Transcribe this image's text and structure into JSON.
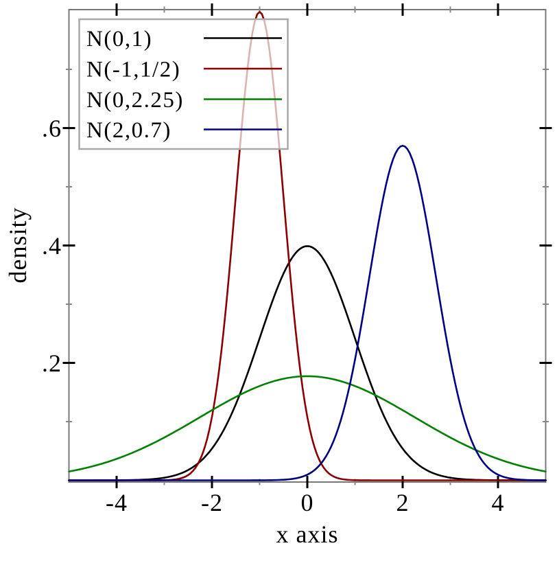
{
  "chart_data": {
    "type": "line",
    "title": "",
    "xlabel": "x axis",
    "ylabel": "density",
    "xlim": [
      -5,
      5
    ],
    "ylim": [
      0,
      0.8
    ],
    "grid": false,
    "legend_position": "top-left",
    "curve_formula": "normal_pdf: f(x) = exp(-(x-mu)^2/(2*sigma^2)) / (sigma*sqrt(2*pi))",
    "x_major_ticks": {
      "values": [
        -4,
        -2,
        0,
        2,
        4
      ],
      "labels": [
        "-4",
        "-2",
        "0",
        "2",
        "4"
      ]
    },
    "x_minor_ticks": [
      -3,
      -1,
      1,
      3
    ],
    "y_major_ticks": {
      "values": [
        0.2,
        0.4,
        0.6
      ],
      "labels": [
        ".2",
        ".4",
        ".6"
      ]
    },
    "y_minor_ticks": [
      0.1,
      0.3,
      0.5,
      0.7
    ],
    "series": [
      {
        "name": "N(0,1)",
        "mu": 0,
        "sigma": 1,
        "peak_x": 0,
        "peak_y": 0.399,
        "color": "#000000"
      },
      {
        "name": "N(-1,1/2)",
        "mu": -1,
        "sigma": 0.5,
        "peak_x": -1,
        "peak_y": 0.798,
        "color": "#8b0000"
      },
      {
        "name": "N(0,2.25)",
        "mu": 0,
        "sigma": 2.25,
        "peak_x": 0,
        "peak_y": 0.177,
        "color": "#008000"
      },
      {
        "name": "N(2,0.7)",
        "mu": 2,
        "sigma": 0.7,
        "peak_x": 2,
        "peak_y": 0.57,
        "color": "#000080"
      }
    ],
    "style": {
      "background": "#ffffff",
      "frame_color": "#787878",
      "major_tick_color": "#000000",
      "minor_tick_color": "#888888",
      "legend_border_color": "#a8a8a8",
      "legend_bg": "rgba(255,255,255,0.70)",
      "text_color": "#000000"
    }
  }
}
